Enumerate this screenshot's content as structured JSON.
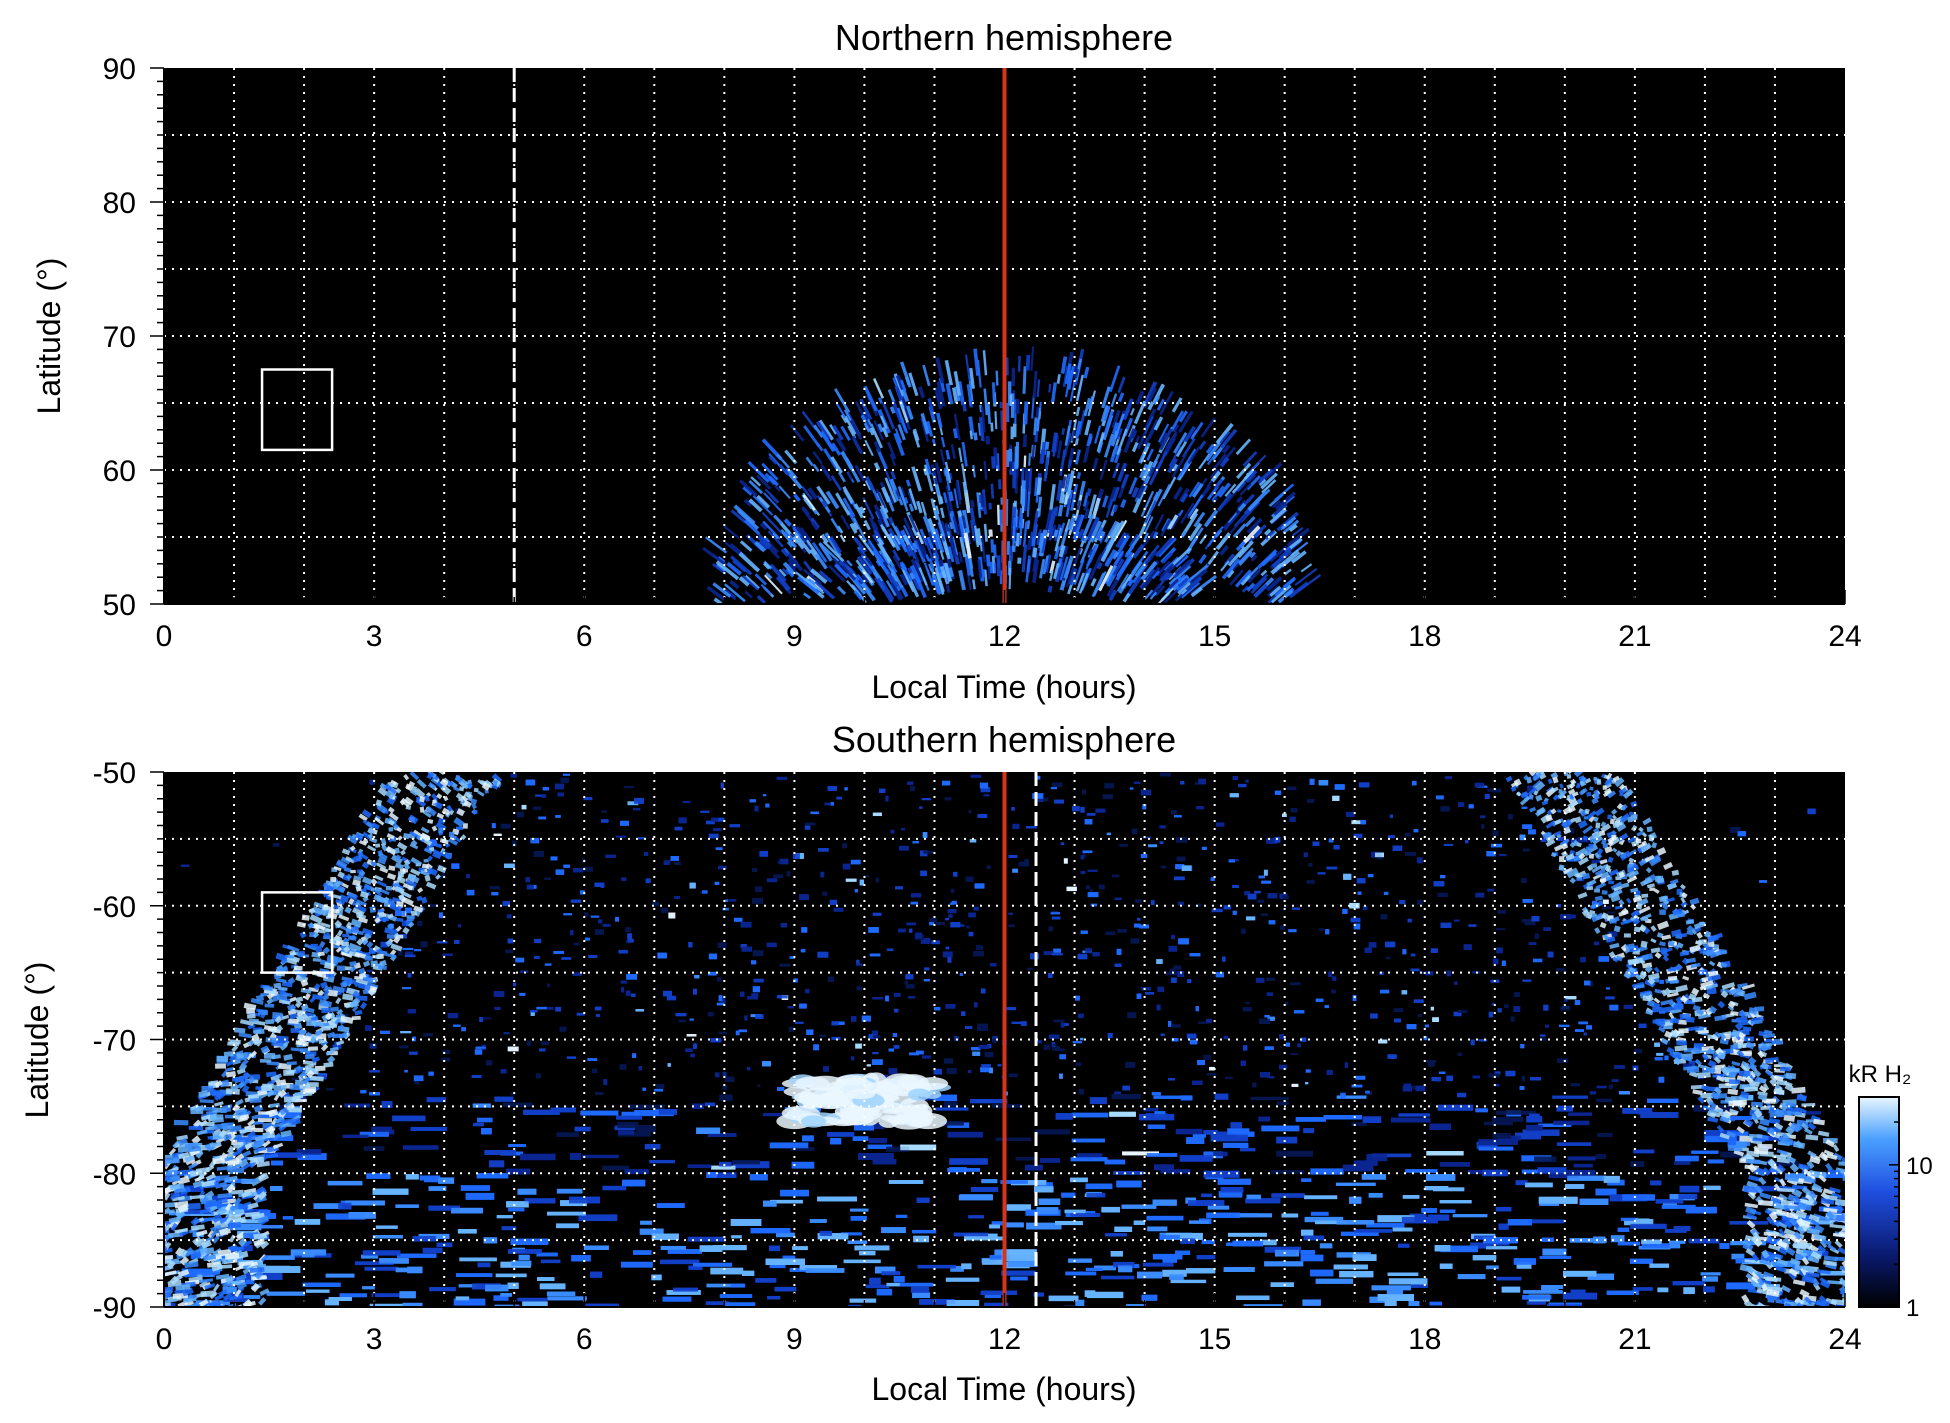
{
  "colors": {
    "background": "#000000",
    "aurora_low": "#0a1a70",
    "aurora_mid": "#1f6bff",
    "aurora_high": "#bfe6ff",
    "reference_line": "#d4351c",
    "grid": "#ffffff"
  },
  "chart_data": [
    {
      "type": "heatmap",
      "title": "Northern hemisphere",
      "xlabel": "Local Time (hours)",
      "ylabel": "Latitude (°)",
      "xlim": [
        0,
        24
      ],
      "ylim": [
        50,
        90
      ],
      "xticks": [
        "0",
        "3",
        "6",
        "9",
        "12",
        "15",
        "18",
        "21",
        "24"
      ],
      "yticks": [
        "50",
        "60",
        "70",
        "80",
        "90"
      ],
      "grid": true,
      "reference_line_x": 12,
      "dashed_line_x": 5,
      "box": {
        "x": [
          1.4,
          2.4
        ],
        "y": [
          61.5,
          67.5
        ]
      },
      "emission_regions": [
        {
          "shape": "arc",
          "center_x": 12.1,
          "lt_half_width": 4.2,
          "lat_top": 67.5,
          "lat_bottom": 50,
          "level": "mid"
        },
        {
          "shape": "arc",
          "center_x": 12.0,
          "lt_half_width": 2.8,
          "lat_top": 56.0,
          "lat_bottom": 50,
          "level": "mid"
        }
      ]
    },
    {
      "type": "heatmap",
      "title": "Southern hemisphere",
      "xlabel": "Local Time (hours)",
      "ylabel": "Latitude (°)",
      "xlim": [
        0,
        24
      ],
      "ylim": [
        -90,
        -50
      ],
      "xticks": [
        "0",
        "3",
        "6",
        "9",
        "12",
        "15",
        "18",
        "21",
        "24"
      ],
      "yticks": [
        "-50",
        "-60",
        "-70",
        "-80",
        "-90"
      ],
      "grid": true,
      "reference_line_x": 12,
      "dashed_line_x": 12.45,
      "box": {
        "x": [
          1.4,
          2.4
        ],
        "y": [
          -65,
          -59
        ]
      },
      "emission_regions": [
        {
          "shape": "oval",
          "center_x": 12.0,
          "lt_half_width_at_-50": 7.1,
          "lt_half_width_at_-80": 10.5,
          "level": "high"
        },
        {
          "shape": "patch",
          "x": [
            9.0,
            11.0
          ],
          "y": [
            -76.2,
            -73.0
          ],
          "level": "high"
        },
        {
          "shape": "diffuse",
          "x": [
            0,
            24
          ],
          "y": [
            -90,
            -50
          ],
          "level": "mixed"
        }
      ],
      "colorbar": {
        "label": "kR H₂",
        "scale": "log",
        "range": [
          1,
          30
        ],
        "ticks": [
          "1",
          "10"
        ]
      }
    }
  ]
}
